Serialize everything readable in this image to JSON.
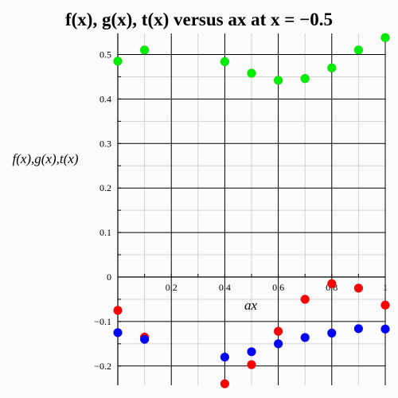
{
  "chart_data": {
    "type": "scatter",
    "title": "f(x), g(x), t(x) versus ax at x = −0.5",
    "xlabel": "ax",
    "ylabel": "f(x),g(x),t(x)",
    "xlim": [
      0,
      1
    ],
    "ylim": [
      -0.2,
      0.5
    ],
    "x_ticks": [
      0.2,
      0.4,
      0.6,
      0.8,
      1
    ],
    "x_tick_labels": [
      "0.2",
      "0.4",
      "0.6",
      "0.8",
      "1"
    ],
    "y_ticks": [
      -0.2,
      -0.1,
      0,
      0.1,
      0.2,
      0.3,
      0.4,
      0.5
    ],
    "y_tick_labels": [
      "−0.2",
      "−0.1",
      "0",
      "0.1",
      "0.2",
      "0.3",
      "0.4",
      "0.5"
    ],
    "grid": true,
    "series": [
      {
        "color": "#ff0000",
        "x": [
          0,
          0.1,
          0.4,
          0.5,
          0.6,
          0.7,
          0.8,
          0.9,
          1.0
        ],
        "y": [
          -0.075,
          -0.135,
          -0.24,
          -0.197,
          -0.122,
          -0.05,
          -0.015,
          -0.025,
          -0.063
        ]
      },
      {
        "color": "#0000ff",
        "x": [
          0,
          0.1,
          0.4,
          0.5,
          0.6,
          0.7,
          0.8,
          0.9,
          1.0
        ],
        "y": [
          -0.125,
          -0.14,
          -0.18,
          -0.168,
          -0.15,
          -0.136,
          -0.126,
          -0.116,
          -0.117
        ]
      },
      {
        "color": "#00ee00",
        "x": [
          0,
          0.1,
          0.4,
          0.5,
          0.6,
          0.7,
          0.8,
          0.9,
          1.0
        ],
        "y": [
          0.485,
          0.51,
          0.484,
          0.458,
          0.442,
          0.446,
          0.47,
          0.51,
          0.538
        ]
      }
    ]
  }
}
